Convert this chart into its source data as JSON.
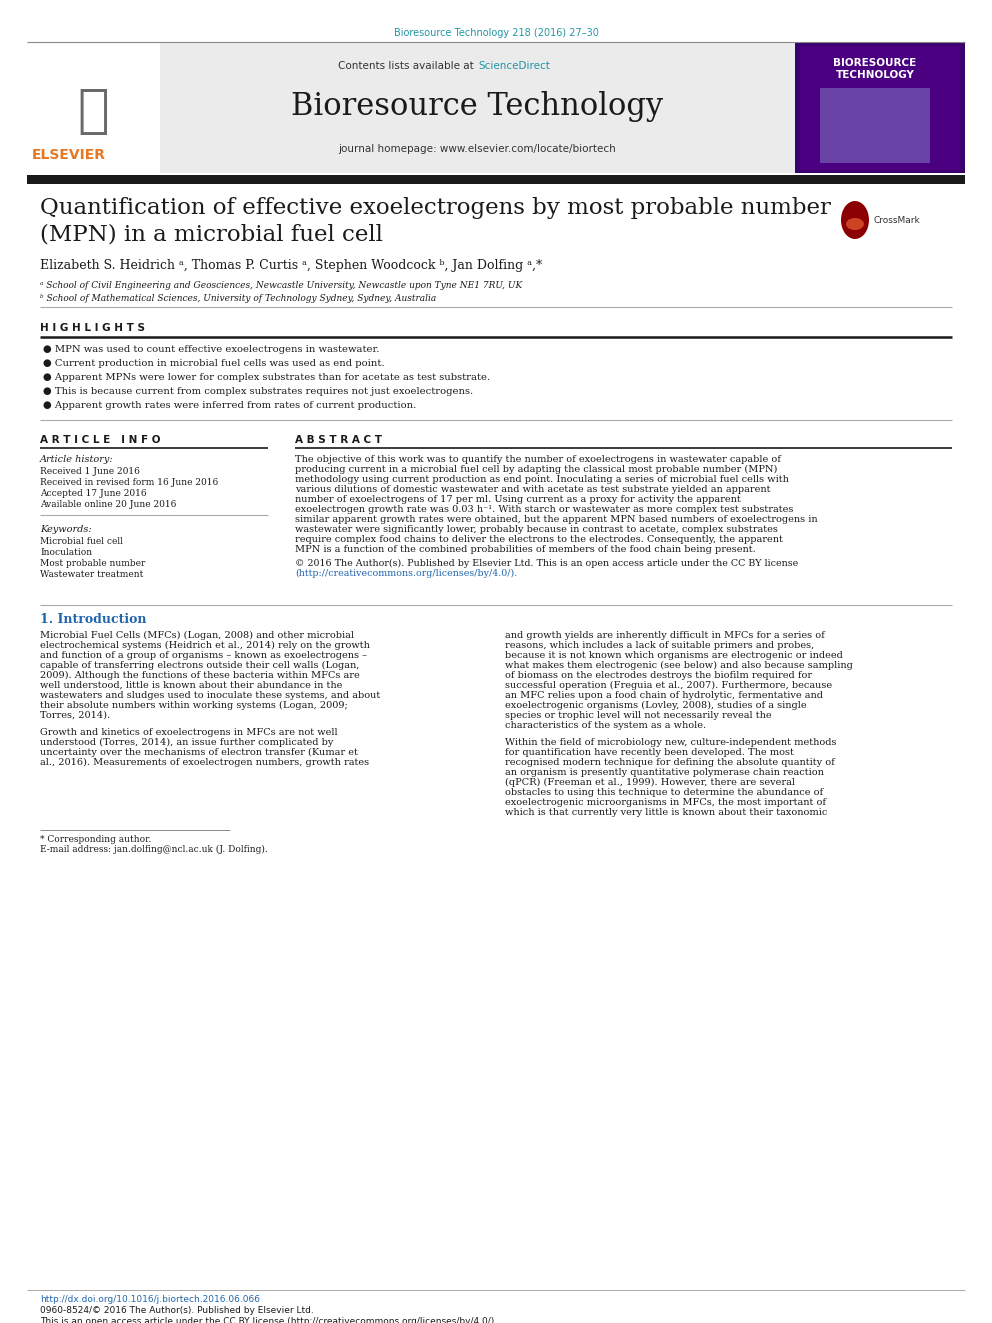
{
  "page_bg": "#ffffff",
  "header_bg": "#e8e8e8",
  "journal_citation": "Bioresource Technology 218 (2016) 27–30",
  "journal_citation_color": "#2196A6",
  "contents_text": "Contents lists available at ",
  "sciencedirect_text": "ScienceDirect",
  "sciencedirect_color": "#2196A6",
  "journal_name": "Bioresource Technology",
  "homepage_text": "journal homepage: www.elsevier.com/locate/biortech",
  "elsevier_orange": "#E87722",
  "elsevier_text": "ELSEVIER",
  "thick_bar_color": "#1a1a1a",
  "article_title_line1": "Quantification of effective exoelectrogens by most probable number",
  "article_title_line2": "(MPN) in a microbial fuel cell",
  "authors_text": "Elizabeth S. Heidrich ᵃ, Thomas P. Curtis ᵃ, Stephen Woodcock ᵇ, Jan Dolfing ᵃ,*",
  "affil_a": "ᵃ School of Civil Engineering and Geosciences, Newcastle University, Newcastle upon Tyne NE1 7RU, UK",
  "affil_b": "ᵇ School of Mathematical Sciences, University of Technology Sydney, Sydney, Australia",
  "highlights_title": "H I G H L I G H T S",
  "highlights": [
    "MPN was used to count effective exoelectrogens in wastewater.",
    "Current production in microbial fuel cells was used as end point.",
    "Apparent MPNs were lower for complex substrates than for acetate as test substrate.",
    "This is because current from complex substrates requires not just exoelectrogens.",
    "Apparent growth rates were inferred from rates of current production."
  ],
  "article_info_title": "A R T I C L E   I N F O",
  "abstract_title": "A B S T R A C T",
  "article_history_title": "Article history:",
  "received": "Received 1 June 2016",
  "received_revised": "Received in revised form 16 June 2016",
  "accepted": "Accepted 17 June 2016",
  "available": "Available online 20 June 2016",
  "keywords_title": "Keywords:",
  "keywords": [
    "Microbial fuel cell",
    "Inoculation",
    "Most probable number",
    "Wastewater treatment"
  ],
  "abstract_text": "The objective of this work was to quantify the number of exoelectrogens in wastewater capable of producing current in a microbial fuel cell by adapting the classical most probable number (MPN) methodology using current production as end point. Inoculating a series of microbial fuel cells with various dilutions of domestic wastewater and with acetate as test substrate yielded an apparent number of exoelectrogens of 17 per ml. Using current as a proxy for activity the apparent exoelectrogen growth rate was 0.03 h⁻¹. With starch or wastewater as more complex test substrates similar apparent growth rates were obtained, but the apparent MPN based numbers of exoelectrogens in wastewater were significantly lower, probably because in contrast to acetate, complex substrates require complex food chains to deliver the electrons to the electrodes. Consequently, the apparent MPN is a function of the combined probabilities of members of the food chain being present.",
  "copyright_text": "© 2016 The Author(s). Published by Elsevier Ltd. This is an open access article under the CC BY license",
  "copyright_link": "(http://creativecommons.org/licenses/by/4.0/).",
  "intro_title": "1. Introduction",
  "intro_title_color": "#2166AC",
  "intro_col1_para1": "Microbial Fuel Cells (MFCs) (Logan, 2008) and other microbial electrochemical systems (Heidrich et al., 2014) rely on the growth and function of a group of organisms – known as exoelectrogens – capable of transferring electrons outside their cell walls (Logan, 2009). Although the functions of these bacteria within MFCs are well understood, little is known about their abundance in the wastewaters and sludges used to inoculate these systems, and about their absolute numbers within working systems (Logan, 2009; Torres, 2014).",
  "intro_col1_para2": "Growth and kinetics of exoelectrogens in MFCs are not well understood (Torres, 2014), an issue further complicated by uncertainty over the mechanisms of electron transfer (Kumar et al., 2016). Measurements of exoelectrogen numbers, growth rates",
  "intro_col2_para1": "and growth yields are inherently difficult in MFCs for a series of reasons, which includes a lack of suitable primers and probes, because it is not known which organisms are electrogenic or indeed what makes them electrogenic (see below) and also because sampling of biomass on the electrodes destroys the biofilm required for successful operation (Freguia et al., 2007). Furthermore, because an MFC relies upon a food chain of hydrolytic, fermentative and exoelectrogenic organisms (Lovley, 2008), studies of a single species or trophic level will not necessarily reveal the characteristics of the system as a whole.",
  "intro_col2_para2": "Within the field of microbiology new, culture-independent methods for quantification have recently been developed. The most recognised modern technique for defining the absolute quantity of an organism is presently quantitative polymerase chain reaction (qPCR) (Freeman et al., 1999). However, there are several obstacles to using this technique to determine the abundance of exoelectrogenic microorganisms in MFCs, the most important of which is that currently very little is known about their taxonomic",
  "footnote_star": "* Corresponding author.",
  "footnote_email": "E-mail address: jan.dolfing@ncl.ac.uk (J. Dolfing).",
  "doi_text": "http://dx.doi.org/10.1016/j.biortech.2016.06.066",
  "issn_text": "0960-8524/© 2016 The Author(s). Published by Elsevier Ltd.",
  "open_access_text": "This is an open access article under the CC BY license (http://creativecommons.org/licenses/by/4.0/).",
  "link_color": "#2166AC",
  "cover_bg": "#4B0082",
  "cover_text1": "BIORESOURCE",
  "cover_text2": "TECHNOLOGY"
}
